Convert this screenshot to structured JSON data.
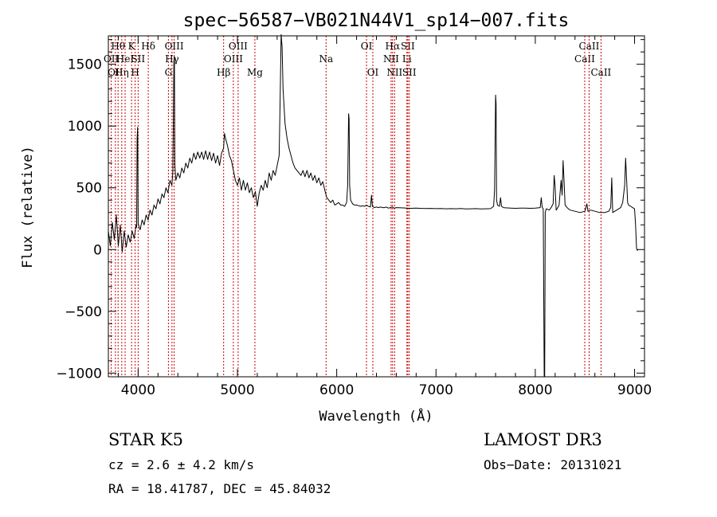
{
  "chart_data": {
    "type": "line",
    "title": "spec−56587−VB021N44V1_sp14−007.fits",
    "xlabel": "Wavelength (Å)",
    "ylabel": "Flux (relative)",
    "xlim": [
      3700,
      9100
    ],
    "ylim": [
      -1030,
      1730
    ],
    "x_ticks": [
      {
        "value": 4000,
        "label": "4000"
      },
      {
        "value": 5000,
        "label": "5000"
      },
      {
        "value": 6000,
        "label": "6000"
      },
      {
        "value": 7000,
        "label": "7000"
      },
      {
        "value": 8000,
        "label": "8000"
      },
      {
        "value": 9000,
        "label": "9000"
      }
    ],
    "y_ticks": [
      {
        "value": -1000,
        "label": "−1000"
      },
      {
        "value": -500,
        "label": "−500"
      },
      {
        "value": 0,
        "label": "0"
      },
      {
        "value": 500,
        "label": "500"
      },
      {
        "value": 1000,
        "label": "1000"
      },
      {
        "value": 1500,
        "label": "1500"
      }
    ],
    "grid": false,
    "series": [
      {
        "points": [
          [
            3700,
            150
          ],
          [
            3720,
            30
          ],
          [
            3740,
            220
          ],
          [
            3760,
            80
          ],
          [
            3780,
            280
          ],
          [
            3800,
            30
          ],
          [
            3820,
            200
          ],
          [
            3840,
            -20
          ],
          [
            3860,
            150
          ],
          [
            3880,
            20
          ],
          [
            3900,
            120
          ],
          [
            3920,
            60
          ],
          [
            3940,
            150
          ],
          [
            3960,
            90
          ],
          [
            3980,
            200
          ],
          [
            3985,
            180
          ],
          [
            3990,
            900
          ],
          [
            3995,
            990
          ],
          [
            4000,
            210
          ],
          [
            4020,
            160
          ],
          [
            4040,
            240
          ],
          [
            4060,
            200
          ],
          [
            4080,
            280
          ],
          [
            4100,
            240
          ],
          [
            4120,
            320
          ],
          [
            4140,
            280
          ],
          [
            4160,
            360
          ],
          [
            4180,
            330
          ],
          [
            4200,
            410
          ],
          [
            4220,
            370
          ],
          [
            4240,
            450
          ],
          [
            4260,
            420
          ],
          [
            4280,
            500
          ],
          [
            4300,
            460
          ],
          [
            4320,
            560
          ],
          [
            4340,
            520
          ],
          [
            4350,
            640
          ],
          [
            4360,
            1520
          ],
          [
            4365,
            1560
          ],
          [
            4370,
            690
          ],
          [
            4380,
            560
          ],
          [
            4400,
            620
          ],
          [
            4420,
            580
          ],
          [
            4440,
            660
          ],
          [
            4460,
            620
          ],
          [
            4480,
            700
          ],
          [
            4500,
            660
          ],
          [
            4520,
            740
          ],
          [
            4540,
            700
          ],
          [
            4560,
            780
          ],
          [
            4580,
            730
          ],
          [
            4600,
            790
          ],
          [
            4620,
            740
          ],
          [
            4640,
            790
          ],
          [
            4660,
            730
          ],
          [
            4680,
            800
          ],
          [
            4700,
            730
          ],
          [
            4720,
            790
          ],
          [
            4740,
            720
          ],
          [
            4760,
            780
          ],
          [
            4780,
            700
          ],
          [
            4800,
            760
          ],
          [
            4820,
            680
          ],
          [
            4840,
            780
          ],
          [
            4860,
            820
          ],
          [
            4870,
            940
          ],
          [
            4880,
            900
          ],
          [
            4900,
            840
          ],
          [
            4920,
            760
          ],
          [
            4940,
            720
          ],
          [
            4960,
            640
          ],
          [
            4980,
            560
          ],
          [
            5000,
            520
          ],
          [
            5020,
            580
          ],
          [
            5040,
            480
          ],
          [
            5060,
            560
          ],
          [
            5080,
            480
          ],
          [
            5100,
            540
          ],
          [
            5120,
            460
          ],
          [
            5140,
            500
          ],
          [
            5160,
            420
          ],
          [
            5180,
            470
          ],
          [
            5200,
            350
          ],
          [
            5220,
            460
          ],
          [
            5240,
            520
          ],
          [
            5260,
            480
          ],
          [
            5280,
            560
          ],
          [
            5300,
            500
          ],
          [
            5320,
            620
          ],
          [
            5340,
            560
          ],
          [
            5360,
            640
          ],
          [
            5380,
            600
          ],
          [
            5400,
            680
          ],
          [
            5420,
            760
          ],
          [
            5430,
            1200
          ],
          [
            5440,
            1740
          ],
          [
            5450,
            1640
          ],
          [
            5460,
            1300
          ],
          [
            5480,
            1020
          ],
          [
            5500,
            900
          ],
          [
            5520,
            820
          ],
          [
            5540,
            760
          ],
          [
            5560,
            700
          ],
          [
            5580,
            660
          ],
          [
            5600,
            640
          ],
          [
            5620,
            620
          ],
          [
            5640,
            600
          ],
          [
            5660,
            640
          ],
          [
            5680,
            590
          ],
          [
            5700,
            640
          ],
          [
            5720,
            580
          ],
          [
            5740,
            620
          ],
          [
            5760,
            560
          ],
          [
            5780,
            600
          ],
          [
            5800,
            540
          ],
          [
            5820,
            580
          ],
          [
            5840,
            520
          ],
          [
            5860,
            550
          ],
          [
            5880,
            480
          ],
          [
            5900,
            420
          ],
          [
            5920,
            400
          ],
          [
            5940,
            380
          ],
          [
            5960,
            400
          ],
          [
            5980,
            360
          ],
          [
            6000,
            370
          ],
          [
            6020,
            380
          ],
          [
            6040,
            360
          ],
          [
            6060,
            360
          ],
          [
            6080,
            350
          ],
          [
            6100,
            380
          ],
          [
            6110,
            520
          ],
          [
            6120,
            1100
          ],
          [
            6125,
            1060
          ],
          [
            6130,
            520
          ],
          [
            6140,
            400
          ],
          [
            6160,
            370
          ],
          [
            6180,
            360
          ],
          [
            6200,
            360
          ],
          [
            6220,
            355
          ],
          [
            6240,
            350
          ],
          [
            6260,
            355
          ],
          [
            6280,
            350
          ],
          [
            6300,
            360
          ],
          [
            6320,
            350
          ],
          [
            6340,
            345
          ],
          [
            6350,
            440
          ],
          [
            6360,
            350
          ],
          [
            6380,
            340
          ],
          [
            6400,
            345
          ],
          [
            6420,
            340
          ],
          [
            6440,
            345
          ],
          [
            6460,
            340
          ],
          [
            6480,
            340
          ],
          [
            6500,
            345
          ],
          [
            6520,
            335
          ],
          [
            6540,
            340
          ],
          [
            6560,
            345
          ],
          [
            6580,
            335
          ],
          [
            6600,
            340
          ],
          [
            6650,
            338
          ],
          [
            6700,
            336
          ],
          [
            6750,
            334
          ],
          [
            6800,
            335
          ],
          [
            6850,
            333
          ],
          [
            6900,
            332
          ],
          [
            6950,
            333
          ],
          [
            7000,
            331
          ],
          [
            7050,
            332
          ],
          [
            7100,
            330
          ],
          [
            7150,
            331
          ],
          [
            7200,
            330
          ],
          [
            7250,
            332
          ],
          [
            7300,
            329
          ],
          [
            7350,
            330
          ],
          [
            7400,
            331
          ],
          [
            7450,
            329
          ],
          [
            7500,
            330
          ],
          [
            7550,
            331
          ],
          [
            7580,
            350
          ],
          [
            7590,
            480
          ],
          [
            7600,
            1250
          ],
          [
            7605,
            1180
          ],
          [
            7610,
            400
          ],
          [
            7620,
            360
          ],
          [
            7640,
            350
          ],
          [
            7650,
            420
          ],
          [
            7660,
            350
          ],
          [
            7680,
            340
          ],
          [
            7700,
            338
          ],
          [
            7750,
            336
          ],
          [
            7800,
            334
          ],
          [
            7850,
            336
          ],
          [
            7900,
            335
          ],
          [
            7950,
            334
          ],
          [
            8000,
            336
          ],
          [
            8050,
            340
          ],
          [
            8060,
            420
          ],
          [
            8070,
            340
          ],
          [
            8080,
            330
          ],
          [
            8090,
            -1030
          ],
          [
            8095,
            -1030
          ],
          [
            8100,
            300
          ],
          [
            8110,
            330
          ],
          [
            8140,
            320
          ],
          [
            8160,
            340
          ],
          [
            8180,
            370
          ],
          [
            8190,
            600
          ],
          [
            8200,
            510
          ],
          [
            8210,
            320
          ],
          [
            8220,
            330
          ],
          [
            8240,
            360
          ],
          [
            8260,
            560
          ],
          [
            8270,
            440
          ],
          [
            8280,
            720
          ],
          [
            8290,
            560
          ],
          [
            8300,
            360
          ],
          [
            8320,
            340
          ],
          [
            8350,
            320
          ],
          [
            8400,
            310
          ],
          [
            8450,
            300
          ],
          [
            8500,
            310
          ],
          [
            8520,
            370
          ],
          [
            8530,
            310
          ],
          [
            8560,
            320
          ],
          [
            8600,
            310
          ],
          [
            8650,
            300
          ],
          [
            8700,
            300
          ],
          [
            8740,
            310
          ],
          [
            8760,
            340
          ],
          [
            8770,
            580
          ],
          [
            8780,
            300
          ],
          [
            8800,
            310
          ],
          [
            8820,
            320
          ],
          [
            8860,
            340
          ],
          [
            8880,
            380
          ],
          [
            8900,
            520
          ],
          [
            8910,
            740
          ],
          [
            8920,
            560
          ],
          [
            8930,
            380
          ],
          [
            8940,
            360
          ],
          [
            8960,
            350
          ],
          [
            8980,
            340
          ],
          [
            9000,
            330
          ],
          [
            9010,
            200
          ],
          [
            9020,
            10
          ],
          [
            9030,
            -10
          ]
        ]
      }
    ],
    "lines": [
      {
        "wave": 3729,
        "label": "OII",
        "row": 1
      },
      {
        "wave": 3771,
        "label": "OII",
        "row": 2
      },
      {
        "wave": 3798,
        "label": "Hθ",
        "row": 0
      },
      {
        "wave": 3835,
        "label": "Hη",
        "row": 2
      },
      {
        "wave": 3869,
        "label": "HeI",
        "row": 1
      },
      {
        "wave": 3934,
        "label": "K",
        "row": 0
      },
      {
        "wave": 3970,
        "label": "H",
        "row": 2
      },
      {
        "wave": 4000,
        "label": "SII",
        "row": 1
      },
      {
        "wave": 4102,
        "label": "Hδ",
        "row": 0
      },
      {
        "wave": 4305,
        "label": "G",
        "row": 2
      },
      {
        "wave": 4341,
        "label": "Hγ",
        "row": 1
      },
      {
        "wave": 4363,
        "label": "OIII",
        "row": 0
      },
      {
        "wave": 4861,
        "label": "Hβ",
        "row": 2
      },
      {
        "wave": 4959,
        "label": "OIII",
        "row": 1
      },
      {
        "wave": 5007,
        "label": "OIII",
        "row": 0
      },
      {
        "wave": 5176,
        "label": "Mg",
        "row": 2
      },
      {
        "wave": 5893,
        "label": "Na",
        "row": 1
      },
      {
        "wave": 6300,
        "label": "OI",
        "row": 0
      },
      {
        "wave": 6364,
        "label": "OI",
        "row": 2
      },
      {
        "wave": 6548,
        "label": "NII",
        "row": 1
      },
      {
        "wave": 6563,
        "label": "Hα",
        "row": 0
      },
      {
        "wave": 6583,
        "label": "NII",
        "row": 2
      },
      {
        "wave": 6707,
        "label": "Li",
        "row": 1
      },
      {
        "wave": 6716,
        "label": "SII",
        "row": 0
      },
      {
        "wave": 6731,
        "label": "SII",
        "row": 2
      },
      {
        "wave": 8498,
        "label": "CaII",
        "row": 1
      },
      {
        "wave": 8542,
        "label": "CaII",
        "row": 0
      },
      {
        "wave": 8662,
        "label": "CaII",
        "row": 2
      }
    ],
    "line_color": "#cc0000"
  },
  "info": {
    "class_text": "STAR    K5",
    "survey": "LAMOST DR3",
    "cz": "cz = 2.6 ± 4.2 km/s",
    "obs_date": "Obs−Date: 20131021",
    "coords": "RA =  18.41787, DEC =  45.84032"
  }
}
